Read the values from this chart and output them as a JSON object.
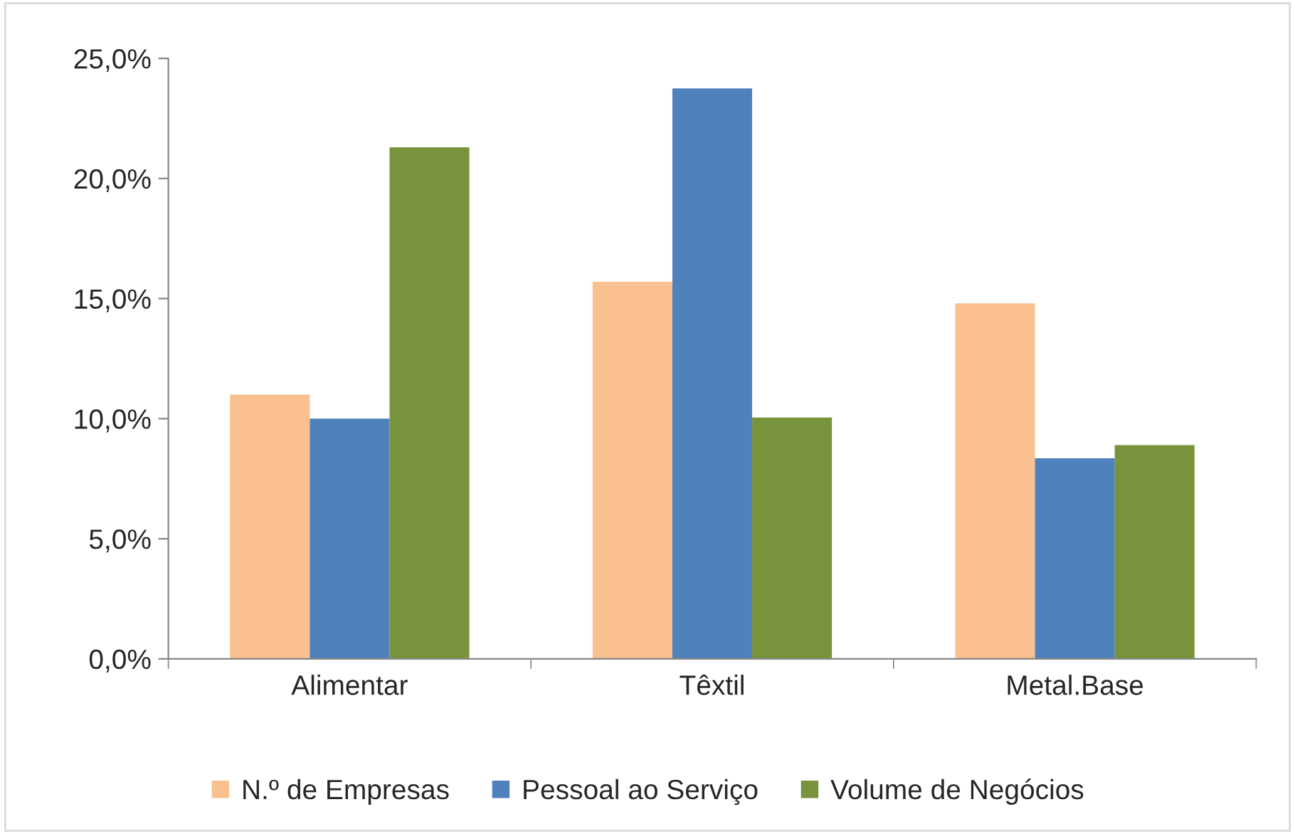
{
  "chart_data": {
    "type": "bar",
    "categories": [
      "Alimentar",
      "Têxtil",
      "Metal.Base"
    ],
    "series": [
      {
        "name": "N.º de Empresas",
        "color": "#fac090",
        "values": [
          11.0,
          15.7,
          14.8
        ]
      },
      {
        "name": "Pessoal ao Serviço",
        "color": "#4f81bd",
        "values": [
          10.0,
          23.75,
          8.35
        ]
      },
      {
        "name": "Volume de Negócios",
        "color": "#77933c",
        "values": [
          21.3,
          10.05,
          8.9
        ]
      }
    ],
    "ylim": [
      0,
      25
    ],
    "yticks": [
      {
        "value": 0,
        "label": "0,0%"
      },
      {
        "value": 5,
        "label": "5,0%"
      },
      {
        "value": 10,
        "label": "10,0%"
      },
      {
        "value": 15,
        "label": "15,0%"
      },
      {
        "value": 20,
        "label": "20,0%"
      },
      {
        "value": 25,
        "label": "25,0%"
      }
    ],
    "grid": false,
    "legend": "bottom"
  }
}
